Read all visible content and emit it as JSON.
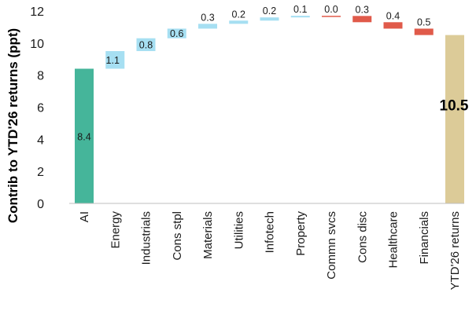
{
  "chart_data": {
    "type": "bar",
    "subtype": "waterfall",
    "ylabel": "Contrib to YTD'26 returns (ppt)",
    "ylim": [
      0,
      12
    ],
    "yticks": [
      "0",
      "2",
      "4",
      "6",
      "8",
      "10",
      "12"
    ],
    "grid": false,
    "categories": [
      "AI",
      "Energy",
      "Industrials",
      "Cons stpl",
      "Materials",
      "Utilities",
      "Infotech",
      "Property",
      "Commn svcs",
      "Cons disc",
      "Healthcare",
      "Financials",
      "YTD'26 returns"
    ],
    "bars": [
      {
        "category": "AI",
        "kind": "base",
        "start": 0,
        "end": 8.4,
        "label": "8.4",
        "color": "#45b59a"
      },
      {
        "category": "Energy",
        "kind": "increase",
        "start": 8.4,
        "end": 9.5,
        "label": "1.1",
        "color": "#a6dff2"
      },
      {
        "category": "Industrials",
        "kind": "increase",
        "start": 9.5,
        "end": 10.3,
        "label": "0.8",
        "color": "#a6dff2"
      },
      {
        "category": "Cons stpl",
        "kind": "increase",
        "start": 10.3,
        "end": 10.9,
        "label": "0.6",
        "color": "#a6dff2"
      },
      {
        "category": "Materials",
        "kind": "increase",
        "start": 10.9,
        "end": 11.2,
        "label": "0.3",
        "color": "#a6dff2"
      },
      {
        "category": "Utilities",
        "kind": "increase",
        "start": 11.2,
        "end": 11.4,
        "label": "0.2",
        "color": "#a6dff2"
      },
      {
        "category": "Infotech",
        "kind": "increase",
        "start": 11.4,
        "end": 11.6,
        "label": "0.2",
        "color": "#a6dff2"
      },
      {
        "category": "Property",
        "kind": "increase",
        "start": 11.6,
        "end": 11.7,
        "label": "0.1",
        "color": "#a6dff2"
      },
      {
        "category": "Commn svcs",
        "kind": "decrease",
        "start": 11.7,
        "end": 11.69,
        "label": "0.0",
        "color": "#e05a4a"
      },
      {
        "category": "Cons disc",
        "kind": "decrease",
        "start": 11.69,
        "end": 11.3,
        "label": "0.3",
        "color": "#e05a4a"
      },
      {
        "category": "Healthcare",
        "kind": "decrease",
        "start": 11.3,
        "end": 10.9,
        "label": "0.4",
        "color": "#e05a4a"
      },
      {
        "category": "Financials",
        "kind": "decrease",
        "start": 10.9,
        "end": 10.5,
        "label": "0.5",
        "color": "#e05a4a"
      },
      {
        "category": "YTD'26 returns",
        "kind": "total",
        "start": 0,
        "end": 10.5,
        "label": "10.5",
        "color": "#dccb98"
      }
    ]
  }
}
